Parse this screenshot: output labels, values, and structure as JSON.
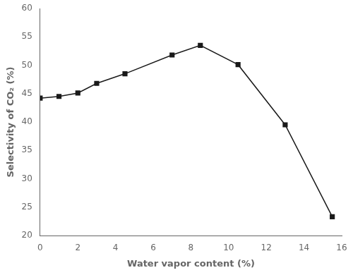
{
  "chart_data": {
    "type": "line",
    "x": [
      0,
      1,
      2,
      3,
      4.5,
      7,
      8.5,
      10.5,
      13,
      15.5
    ],
    "values": [
      44.2,
      44.5,
      45.1,
      46.8,
      48.5,
      51.8,
      53.5,
      50.1,
      39.5,
      23.3
    ],
    "xlabel": "Water vapor content (%)",
    "ylabel": "Selectivity of CO₂ (%)",
    "xlim": [
      0,
      16
    ],
    "ylim": [
      20,
      60
    ],
    "xticks": [
      0,
      2,
      4,
      6,
      8,
      10,
      12,
      14,
      16
    ],
    "yticks": [
      20,
      25,
      30,
      35,
      40,
      45,
      50,
      55,
      60
    ],
    "color": "#1a1a1a",
    "marker": "square",
    "grid": false
  }
}
